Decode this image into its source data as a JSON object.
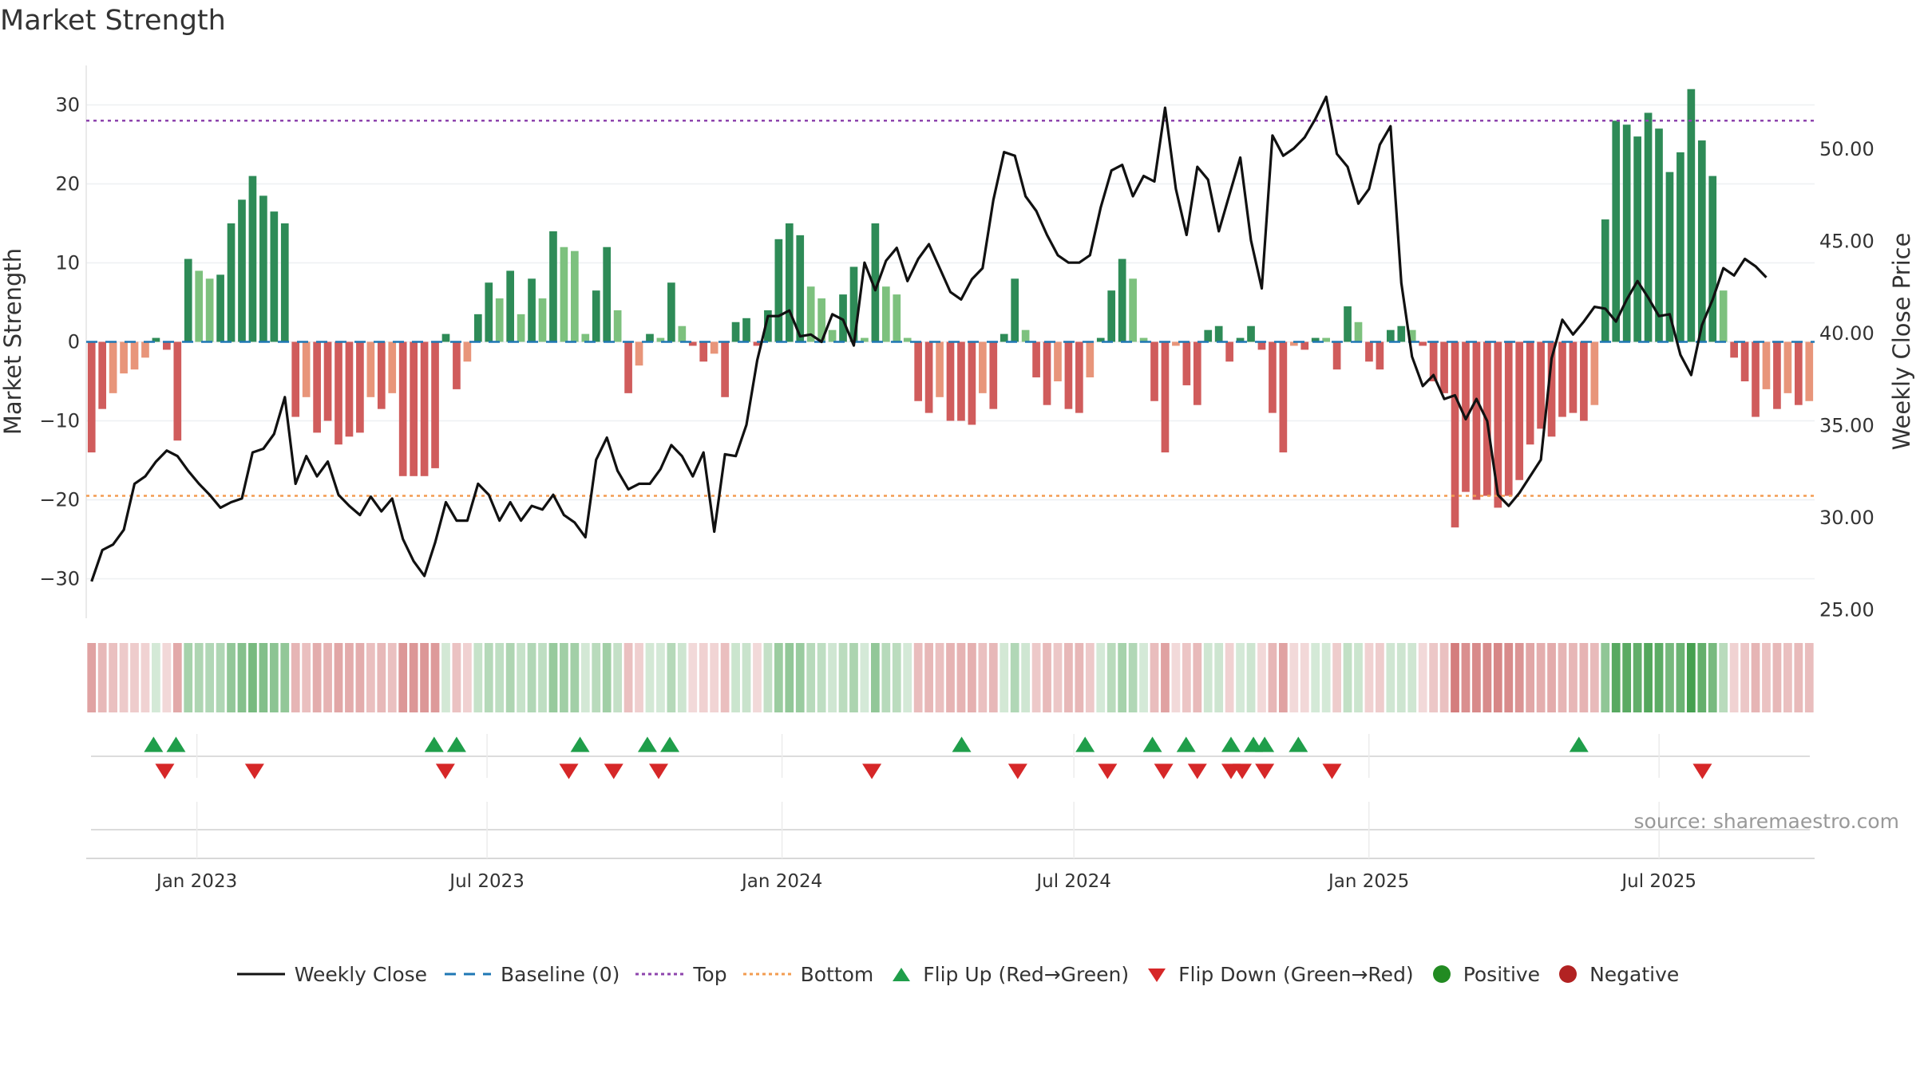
{
  "title": "Market Strength",
  "source": "source: sharemaestro.com",
  "chart_data": {
    "type": "bar+line",
    "x_start": "2022-10-24",
    "x_end": "2025-10-06",
    "x_ticks": [
      "Jan 2023",
      "Jul 2023",
      "Jan 2024",
      "Jul 2024",
      "Jan 2025",
      "Jul 2025"
    ],
    "x_tick_dates": [
      "2023-01-01",
      "2023-07-01",
      "2024-01-01",
      "2024-07-01",
      "2025-01-01",
      "2025-07-01"
    ],
    "y_left": {
      "label": "Market Strength",
      "range": [
        -35,
        35
      ],
      "ticks": [
        30,
        20,
        10,
        0,
        -10,
        -20,
        -30
      ],
      "tick_labels": [
        "30",
        "20",
        "10",
        "0",
        "−10",
        "−20",
        "−30"
      ]
    },
    "y_right": {
      "label": "Weekly Close Price",
      "range": [
        24.5,
        54.5
      ],
      "ticks": [
        50,
        45,
        40,
        35,
        30,
        25
      ],
      "tick_labels": [
        "50.00",
        "45.00",
        "40.00",
        "35.00",
        "30.00",
        "25.00"
      ]
    },
    "top_line": 28,
    "bottom_line": -19.5,
    "strength": [
      -14,
      -8.5,
      -6.5,
      -4,
      -3.5,
      -2,
      0.5,
      -1,
      -12.5,
      10.5,
      9,
      8,
      8.5,
      15,
      18,
      21,
      18.5,
      16.5,
      15,
      -9.5,
      -7,
      -11.5,
      -10,
      -13,
      -12,
      -11.5,
      -7,
      -8.5,
      -6.5,
      -17,
      -17,
      -17,
      -16,
      1,
      -6,
      -2.5,
      3.5,
      7.5,
      5.5,
      9,
      3.5,
      8,
      5.5,
      14,
      12,
      11.5,
      1,
      6.5,
      12,
      4,
      -6.5,
      -3,
      1,
      0.5,
      7.5,
      2,
      -0.5,
      -2.5,
      -1.5,
      -7,
      2.5,
      3,
      -0.5,
      4,
      13,
      15,
      13.5,
      7,
      5.5,
      1.5,
      6,
      9.5,
      0.5,
      15,
      7,
      6,
      0.5,
      -7.5,
      -9,
      -7,
      -10,
      -10,
      -10.5,
      -6.5,
      -8.5,
      1,
      8,
      1.5,
      -4.5,
      -8,
      -5,
      -8.5,
      -9,
      -4.5,
      0.5,
      6.5,
      10.5,
      8,
      0.5,
      -7.5,
      -14,
      -0.5,
      -5.5,
      -8,
      1.5,
      2,
      -2.5,
      0.5,
      2,
      -1,
      -9,
      -14,
      -0.5,
      -1,
      0.5,
      0.5,
      -3.5,
      4.5,
      2.5,
      -2.5,
      -3.5,
      1.5,
      2,
      1.5,
      -0.5,
      -5,
      -6.5,
      -23.5,
      -19,
      -20,
      -19.5,
      -21,
      -19.5,
      -17.5,
      -13,
      -11,
      -12,
      -9.5,
      -9,
      -10,
      -8,
      15.5,
      28,
      27.5,
      26,
      29,
      27,
      21.5,
      24,
      32,
      25.5,
      21,
      6.5,
      -2,
      -5,
      -9.5,
      -6,
      -8.5,
      -6.5,
      -8,
      -7.5
    ],
    "weekly_close": [
      26.5,
      28.2,
      28.5,
      29.3,
      31.8,
      32.2,
      33,
      33.6,
      33.3,
      32.5,
      31.8,
      31.2,
      30.5,
      30.8,
      31,
      33.5,
      33.7,
      34.5,
      36.5,
      31.8,
      33.3,
      32.2,
      33,
      31.2,
      30.6,
      30.1,
      31.1,
      30.3,
      31,
      28.8,
      27.6,
      26.8,
      28.6,
      30.8,
      29.8,
      29.8,
      31.8,
      31.2,
      29.8,
      30.8,
      29.8,
      30.6,
      30.4,
      31.2,
      30.1,
      29.7,
      28.9,
      33.1,
      34.3,
      32.5,
      31.5,
      31.8,
      31.8,
      32.6,
      33.9,
      33.3,
      32.2,
      33.5,
      29.2,
      33.4,
      33.3,
      35,
      38.5,
      40.9,
      40.9,
      41.2,
      39.8,
      39.9,
      39.5,
      41,
      40.7,
      39.3,
      43.8,
      42.3,
      43.9,
      44.6,
      42.8,
      44,
      44.8,
      43.5,
      42.2,
      41.8,
      42.9,
      43.5,
      47.2,
      49.8,
      49.6,
      47.4,
      46.6,
      45.3,
      44.2,
      43.8,
      43.8,
      44.2,
      46.8,
      48.8,
      49.1,
      47.4,
      48.5,
      48.2,
      52.2,
      47.8,
      45.3,
      49,
      48.3,
      45.5,
      47.5,
      49.5,
      45,
      42.4,
      50.7,
      49.6,
      50,
      50.6,
      51.6,
      52.8,
      49.7,
      49,
      47,
      47.8,
      50.2,
      51.2,
      42.7,
      38.7,
      37.1,
      37.7,
      36.4,
      36.6,
      35.3,
      36.4,
      35.2,
      31.2,
      30.6,
      31.3,
      32.2,
      33.1,
      38.6,
      40.7,
      39.9,
      40.6,
      41.4,
      41.3,
      40.6,
      41.8,
      42.8,
      41.9,
      40.9,
      41,
      38.8,
      37.7,
      40.4,
      41.8,
      43.5,
      43.1,
      44,
      43.6,
      43
    ]
  },
  "flip_up": [
    "2022-12-05",
    "2022-12-19",
    "2023-05-29",
    "2023-06-12",
    "2023-08-28",
    "2023-10-09",
    "2023-10-23",
    "2024-04-22",
    "2024-07-08",
    "2024-08-19",
    "2024-09-09",
    "2024-10-07",
    "2024-10-21",
    "2024-10-28",
    "2024-11-18",
    "2025-05-12"
  ],
  "flip_down": [
    "2022-12-12",
    "2023-02-06",
    "2023-06-05",
    "2023-08-21",
    "2023-09-18",
    "2023-10-16",
    "2024-02-26",
    "2024-05-27",
    "2024-07-22",
    "2024-08-26",
    "2024-09-16",
    "2024-10-07",
    "2024-10-14",
    "2024-10-28",
    "2024-12-09",
    "2025-07-28"
  ],
  "colors": {
    "pos_strong": "#2e8b57",
    "pos_light": "#7dc17e",
    "neg_strong": "#d05c5c",
    "neg_light": "#e8957a",
    "price_line": "#111111",
    "baseline": "#1f77b4",
    "top_line": "#8e44ad",
    "bottom_line": "#f39c50",
    "flip_up": "#1f9e4a",
    "flip_down": "#d62728",
    "positive": "#228b22",
    "negative": "#b22222"
  },
  "legend": [
    {
      "label": "Weekly Close",
      "kind": "line-solid",
      "color": "#111111"
    },
    {
      "label": "Baseline (0)",
      "kind": "line-dash",
      "color": "#1f77b4"
    },
    {
      "label": "Top",
      "kind": "line-dot",
      "color": "#8e44ad"
    },
    {
      "label": "Bottom",
      "kind": "line-dot",
      "color": "#f39c50"
    },
    {
      "label": "Flip Up (Red→Green)",
      "kind": "tri-up",
      "color": "#1f9e4a"
    },
    {
      "label": "Flip Down (Green→Red)",
      "kind": "tri-down",
      "color": "#d62728"
    },
    {
      "label": "Positive",
      "kind": "dot",
      "color": "#228b22"
    },
    {
      "label": "Negative",
      "kind": "dot",
      "color": "#b22222"
    }
  ]
}
